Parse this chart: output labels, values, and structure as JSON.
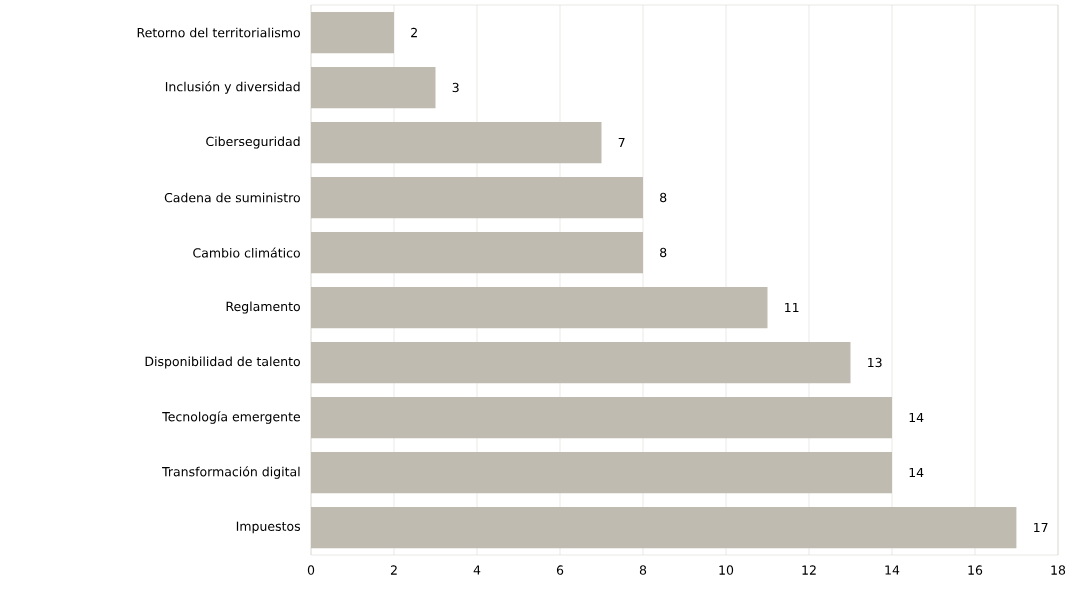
{
  "chart_data": {
    "type": "bar",
    "orientation": "horizontal",
    "categories": [
      "Retorno del territorialismo",
      "Inclusión y diversidad",
      "Ciberseguridad",
      "Cadena de suministro",
      "Cambio climático",
      "Reglamento",
      "Disponibilidad de talento",
      "Tecnología emergente",
      "Transformación digital",
      "Impuestos"
    ],
    "values": [
      2,
      3,
      7,
      8,
      8,
      11,
      13,
      14,
      14,
      17
    ],
    "color": "#c0bbb0",
    "xlim": [
      0,
      18
    ],
    "xticks": [
      0,
      2,
      4,
      6,
      8,
      10,
      12,
      14,
      16,
      18
    ],
    "grid": "x",
    "data_labels": true
  }
}
